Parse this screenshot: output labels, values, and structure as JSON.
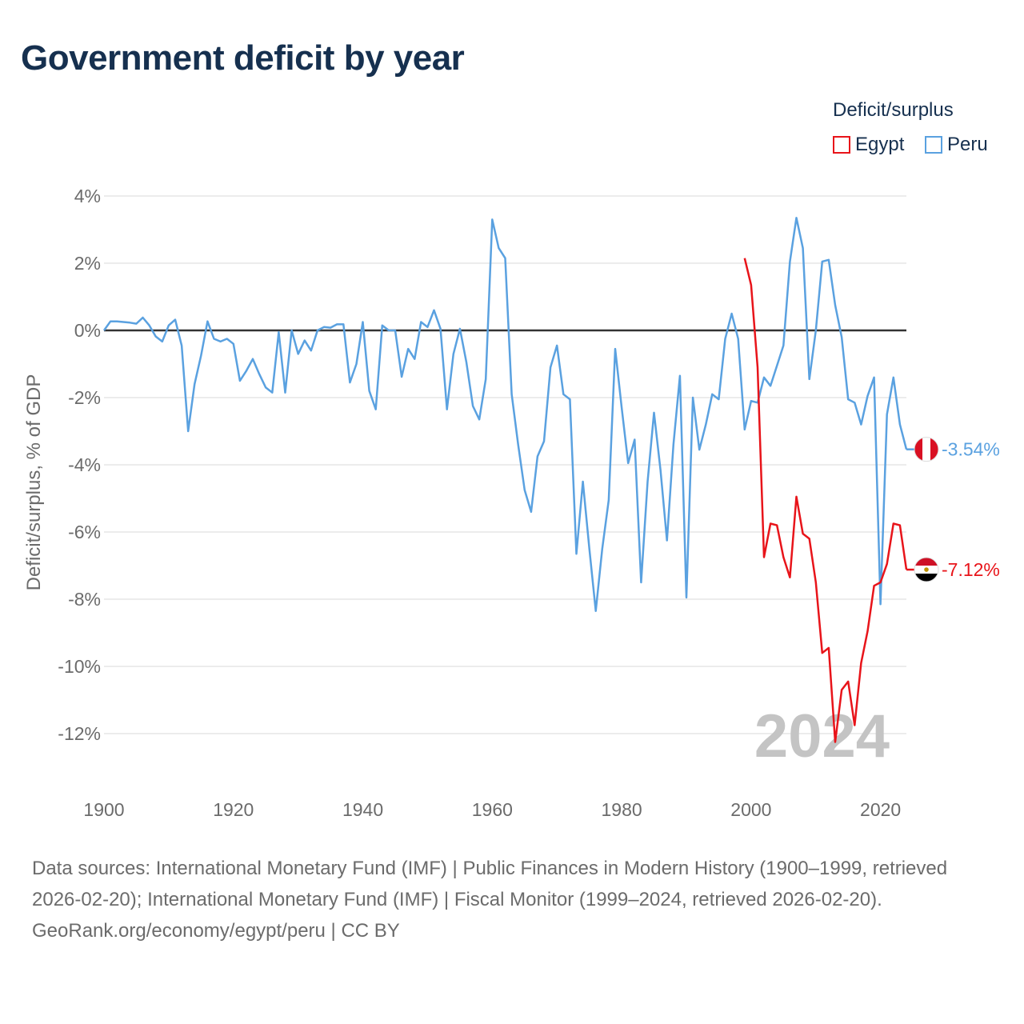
{
  "title": "Government deficit by year",
  "legend": {
    "title": "Deficit/surplus",
    "items": [
      {
        "label": "Egypt",
        "color": "#e8141a"
      },
      {
        "label": "Peru",
        "color": "#5aa1e0"
      }
    ]
  },
  "footer": {
    "sources": "Data sources: International Monetary Fund (IMF) | Public Finances in Modern History (1900–1999, retrieved 2026-02-20); International Monetary Fund (IMF) | Fiscal Monitor (1999–2024, retrieved 2026-02-20).",
    "link": "GeoRank.org/economy/egypt/peru",
    "license": "CC BY"
  },
  "chart_data": {
    "type": "line",
    "title": "Government deficit by year",
    "xlabel": "",
    "ylabel": "Deficit/surplus, % of GDP",
    "xlim": [
      1900,
      2024
    ],
    "ylim": [
      -13.5,
      4.5
    ],
    "x_ticks": [
      1900,
      1920,
      1940,
      1960,
      1980,
      2000,
      2020
    ],
    "y_ticks": [
      4,
      2,
      0,
      -2,
      -4,
      -6,
      -8,
      -10,
      -12
    ],
    "y_tick_labels": [
      "4%",
      "2%",
      "0%",
      "-2%",
      "-4%",
      "-6%",
      "-8%",
      "-10%",
      "-12%"
    ],
    "year_watermark": "2024",
    "zero_line": true,
    "grid": true,
    "series": [
      {
        "name": "Peru",
        "color": "#5aa1e0",
        "end_label": "-3.54%",
        "points": [
          [
            1900,
            0.0
          ],
          [
            1901,
            0.27
          ],
          [
            1902,
            0.27
          ],
          [
            1903,
            0.25
          ],
          [
            1904,
            0.23
          ],
          [
            1905,
            0.2
          ],
          [
            1906,
            0.38
          ],
          [
            1907,
            0.15
          ],
          [
            1908,
            -0.18
          ],
          [
            1909,
            -0.33
          ],
          [
            1910,
            0.15
          ],
          [
            1911,
            0.32
          ],
          [
            1912,
            -0.45
          ],
          [
            1913,
            -3.0
          ],
          [
            1914,
            -1.6
          ],
          [
            1915,
            -0.75
          ],
          [
            1916,
            0.27
          ],
          [
            1917,
            -0.25
          ],
          [
            1918,
            -0.33
          ],
          [
            1919,
            -0.25
          ],
          [
            1920,
            -0.4
          ],
          [
            1921,
            -1.5
          ],
          [
            1922,
            -1.2
          ],
          [
            1923,
            -0.85
          ],
          [
            1924,
            -1.3
          ],
          [
            1925,
            -1.7
          ],
          [
            1926,
            -1.85
          ],
          [
            1927,
            -0.05
          ],
          [
            1928,
            -1.85
          ],
          [
            1929,
            0.0
          ],
          [
            1930,
            -0.7
          ],
          [
            1931,
            -0.3
          ],
          [
            1932,
            -0.6
          ],
          [
            1933,
            0.0
          ],
          [
            1934,
            0.1
          ],
          [
            1935,
            0.08
          ],
          [
            1936,
            0.18
          ],
          [
            1937,
            0.18
          ],
          [
            1938,
            -1.55
          ],
          [
            1939,
            -1.0
          ],
          [
            1940,
            0.25
          ],
          [
            1941,
            -1.8
          ],
          [
            1942,
            -2.35
          ],
          [
            1943,
            0.15
          ],
          [
            1944,
            0.0
          ],
          [
            1945,
            0.0
          ],
          [
            1946,
            -1.38
          ],
          [
            1947,
            -0.55
          ],
          [
            1948,
            -0.85
          ],
          [
            1949,
            0.25
          ],
          [
            1950,
            0.1
          ],
          [
            1951,
            0.6
          ],
          [
            1952,
            0.05
          ],
          [
            1953,
            -2.35
          ],
          [
            1954,
            -0.7
          ],
          [
            1955,
            0.05
          ],
          [
            1956,
            -0.95
          ],
          [
            1957,
            -2.25
          ],
          [
            1958,
            -2.65
          ],
          [
            1959,
            -1.45
          ],
          [
            1960,
            3.3
          ],
          [
            1961,
            2.45
          ],
          [
            1962,
            2.15
          ],
          [
            1963,
            -1.9
          ],
          [
            1964,
            -3.4
          ],
          [
            1965,
            -4.75
          ],
          [
            1966,
            -5.4
          ],
          [
            1967,
            -3.75
          ],
          [
            1968,
            -3.3
          ],
          [
            1969,
            -1.1
          ],
          [
            1970,
            -0.45
          ],
          [
            1971,
            -1.9
          ],
          [
            1972,
            -2.05
          ],
          [
            1973,
            -6.65
          ],
          [
            1974,
            -4.5
          ],
          [
            1975,
            -6.5
          ],
          [
            1976,
            -8.35
          ],
          [
            1977,
            -6.5
          ],
          [
            1978,
            -5.05
          ],
          [
            1979,
            -0.55
          ],
          [
            1980,
            -2.3
          ],
          [
            1981,
            -3.95
          ],
          [
            1982,
            -3.25
          ],
          [
            1983,
            -7.5
          ],
          [
            1984,
            -4.5
          ],
          [
            1985,
            -2.45
          ],
          [
            1986,
            -4.15
          ],
          [
            1987,
            -6.25
          ],
          [
            1988,
            -3.4
          ],
          [
            1989,
            -1.35
          ],
          [
            1990,
            -7.95
          ],
          [
            1991,
            -2.0
          ],
          [
            1992,
            -3.55
          ],
          [
            1993,
            -2.8
          ],
          [
            1994,
            -1.9
          ],
          [
            1995,
            -2.05
          ],
          [
            1996,
            -0.25
          ],
          [
            1997,
            0.5
          ],
          [
            1998,
            -0.25
          ],
          [
            1999,
            -2.95
          ],
          [
            2000,
            -2.1
          ],
          [
            2001,
            -2.15
          ],
          [
            2002,
            -1.4
          ],
          [
            2003,
            -1.65
          ],
          [
            2004,
            -1.05
          ],
          [
            2005,
            -0.45
          ],
          [
            2006,
            2.05
          ],
          [
            2007,
            3.35
          ],
          [
            2008,
            2.45
          ],
          [
            2009,
            -1.45
          ],
          [
            2010,
            0.0
          ],
          [
            2011,
            2.05
          ],
          [
            2012,
            2.1
          ],
          [
            2013,
            0.75
          ],
          [
            2014,
            -0.2
          ],
          [
            2015,
            -2.05
          ],
          [
            2016,
            -2.15
          ],
          [
            2017,
            -2.8
          ],
          [
            2018,
            -1.95
          ],
          [
            2019,
            -1.4
          ],
          [
            2020,
            -8.15
          ],
          [
            2021,
            -2.5
          ],
          [
            2022,
            -1.4
          ],
          [
            2023,
            -2.8
          ],
          [
            2024,
            -3.54
          ]
        ]
      },
      {
        "name": "Egypt",
        "color": "#e8141a",
        "end_label": "-7.12%",
        "points": [
          [
            1999,
            2.15
          ],
          [
            2000,
            1.35
          ],
          [
            2001,
            -1.1
          ],
          [
            2002,
            -6.75
          ],
          [
            2003,
            -5.75
          ],
          [
            2004,
            -5.8
          ],
          [
            2005,
            -6.75
          ],
          [
            2006,
            -7.35
          ],
          [
            2007,
            -4.95
          ],
          [
            2008,
            -6.05
          ],
          [
            2009,
            -6.2
          ],
          [
            2010,
            -7.5
          ],
          [
            2011,
            -9.6
          ],
          [
            2012,
            -9.45
          ],
          [
            2013,
            -12.25
          ],
          [
            2014,
            -10.7
          ],
          [
            2015,
            -10.45
          ],
          [
            2016,
            -11.75
          ],
          [
            2017,
            -9.9
          ],
          [
            2018,
            -8.95
          ],
          [
            2019,
            -7.6
          ],
          [
            2020,
            -7.5
          ],
          [
            2021,
            -6.95
          ],
          [
            2022,
            -5.75
          ],
          [
            2023,
            -5.8
          ],
          [
            2024,
            -7.12
          ]
        ]
      }
    ]
  }
}
